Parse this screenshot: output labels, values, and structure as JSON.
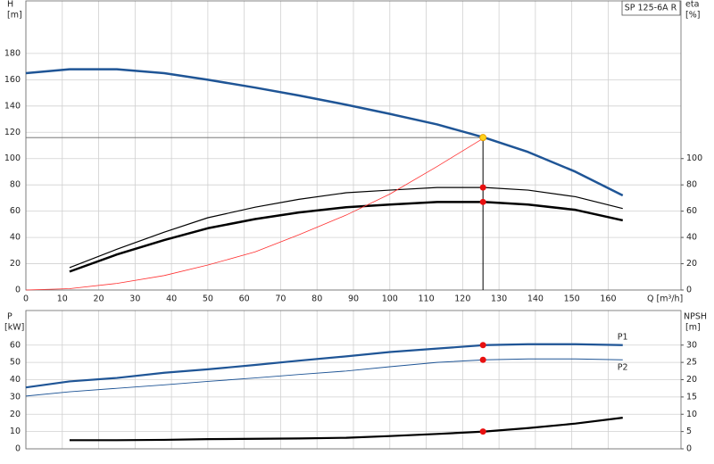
{
  "chart_data": [
    {
      "type": "line",
      "label": "SP 125-6A R",
      "y_label": "H",
      "y_unit": "[m]",
      "y2_label": "eta",
      "y2_unit": "[%]",
      "x_label": "Q [m³/h]",
      "xlim": [
        0,
        180
      ],
      "xticks": [
        0,
        10,
        20,
        30,
        40,
        50,
        60,
        70,
        80,
        90,
        100,
        110,
        120,
        130,
        140,
        150,
        160
      ],
      "ylim": [
        0,
        220
      ],
      "yticks": [
        0,
        20,
        40,
        60,
        80,
        100,
        120,
        140,
        160,
        180
      ],
      "y2lim": [
        0,
        220
      ],
      "y2ticks": [
        0,
        20,
        40,
        60,
        80,
        100
      ],
      "grid": true,
      "operating_lines": true,
      "operating_q": 125.6,
      "series": [
        {
          "color": "#1f5596",
          "line_width": 2.5,
          "point": 116,
          "point_color": "#ffd21a",
          "x": [
            0,
            12,
            25,
            38,
            50,
            63,
            75,
            88,
            100,
            113,
            126,
            138,
            151,
            164
          ],
          "values": [
            165,
            168,
            168,
            165,
            160,
            154,
            148,
            141,
            134,
            126,
            116,
            105,
            90,
            72
          ]
        },
        {
          "color": "#000000",
          "line_width": 1.2,
          "axis": "y2",
          "point": 78,
          "point_color": "#e81010",
          "x": [
            12,
            25,
            38,
            50,
            63,
            75,
            88,
            100,
            113,
            126,
            138,
            151,
            164
          ],
          "values": [
            17,
            31,
            44,
            55,
            63,
            69,
            74,
            76,
            78,
            78,
            76,
            71,
            62
          ]
        },
        {
          "color": "#000000",
          "line_width": 2.5,
          "axis": "y2",
          "point": 67,
          "point_color": "#e81010",
          "x": [
            12,
            25,
            38,
            50,
            63,
            75,
            88,
            100,
            113,
            126,
            138,
            151,
            164
          ],
          "values": [
            14,
            27,
            38,
            47,
            54,
            59,
            63,
            65,
            67,
            67,
            65,
            61,
            53
          ]
        },
        {
          "color": "#ff3030",
          "line_width": 0.8,
          "x": [
            0,
            12,
            25,
            38,
            50,
            63,
            75,
            88,
            100,
            113,
            126
          ],
          "values": [
            0,
            1,
            5,
            11,
            19,
            29,
            42,
            57,
            73,
            94,
            116
          ]
        }
      ]
    },
    {
      "type": "line",
      "y_label": "P",
      "y_unit": "[kW]",
      "y2_label": "NPSH",
      "y2_unit": "[m]",
      "xlim": [
        0,
        180
      ],
      "xticks": [
        0,
        10,
        20,
        30,
        40,
        50,
        60,
        70,
        80,
        90,
        100,
        110,
        120,
        130,
        140,
        150,
        160
      ],
      "ylim": [
        0,
        80
      ],
      "yticks": [
        0,
        10,
        20,
        30,
        40,
        50,
        60
      ],
      "y2lim": [
        0,
        40
      ],
      "y2ticks": [
        0,
        5,
        10,
        15,
        20,
        25,
        30
      ],
      "grid": true,
      "operating_lines": false,
      "operating_q": 125.6,
      "series": [
        {
          "name": "P1",
          "color": "#1f5596",
          "line_width": 2.2,
          "point": 60,
          "point_color": "#e81010",
          "x": [
            0,
            12,
            25,
            38,
            50,
            63,
            75,
            88,
            100,
            113,
            126,
            138,
            151,
            164
          ],
          "values": [
            35.5,
            39,
            41,
            44,
            46,
            48.5,
            51,
            53.5,
            56,
            58,
            60,
            60.5,
            60.5,
            60
          ]
        },
        {
          "name": "P2",
          "color": "#1f5596",
          "line_width": 1,
          "point": 51.5,
          "point_color": "#e81010",
          "x": [
            0,
            12,
            25,
            38,
            50,
            63,
            75,
            88,
            100,
            113,
            126,
            138,
            151,
            164
          ],
          "values": [
            30.5,
            33,
            35,
            37,
            39,
            41,
            43,
            45,
            47.5,
            50,
            51.5,
            52,
            52,
            51.5
          ]
        },
        {
          "color": "#000000",
          "line_width": 2.2,
          "axis": "y2",
          "point": 5,
          "point_color": "#e81010",
          "x": [
            12,
            25,
            38,
            50,
            63,
            75,
            88,
            100,
            113,
            126,
            138,
            151,
            164
          ],
          "values": [
            2.5,
            2.5,
            2.6,
            2.8,
            2.9,
            3,
            3.2,
            3.7,
            4.3,
            5,
            6,
            7.3,
            9
          ]
        }
      ]
    }
  ]
}
